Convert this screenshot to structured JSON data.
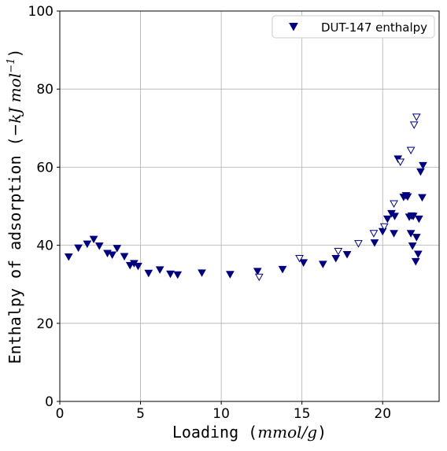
{
  "chart_data": {
    "type": "scatter",
    "xlabel": {
      "pre": "Loading (",
      "unit": "mmol/g",
      "post": ")"
    },
    "ylabel": {
      "pre": "Enthalpy of adsorption (",
      "unit": "−kJ mol",
      "sup": "−1",
      "post": ")"
    },
    "xlim": [
      0,
      23.5
    ],
    "ylim": [
      0,
      100
    ],
    "xticks": [
      0,
      5,
      10,
      15,
      20
    ],
    "yticks": [
      0,
      20,
      40,
      60,
      80,
      100
    ],
    "grid": true,
    "legend_position": "top-right",
    "marker_color": "#00007f",
    "series": [
      {
        "name": "DUT-147 enthalpy",
        "points_filled": [
          [
            0.55,
            37.0
          ],
          [
            1.15,
            39.3
          ],
          [
            1.7,
            40.3
          ],
          [
            2.1,
            41.5
          ],
          [
            2.45,
            39.8
          ],
          [
            2.95,
            37.9
          ],
          [
            3.25,
            37.5
          ],
          [
            3.55,
            39.2
          ],
          [
            4.0,
            37.1
          ],
          [
            4.35,
            34.8
          ],
          [
            4.6,
            35.3
          ],
          [
            4.85,
            34.6
          ],
          [
            5.5,
            32.8
          ],
          [
            6.2,
            33.7
          ],
          [
            6.85,
            32.6
          ],
          [
            7.3,
            32.4
          ],
          [
            8.8,
            32.9
          ],
          [
            10.55,
            32.5
          ],
          [
            12.25,
            33.3
          ],
          [
            13.8,
            33.8
          ],
          [
            15.1,
            35.5
          ],
          [
            16.3,
            35.1
          ],
          [
            17.1,
            36.6
          ],
          [
            17.8,
            37.6
          ],
          [
            19.5,
            40.6
          ],
          [
            20.0,
            43.5
          ],
          [
            20.3,
            46.7
          ],
          [
            20.55,
            48.1
          ],
          [
            20.7,
            43.0
          ],
          [
            20.75,
            47.4
          ],
          [
            20.95,
            62.1
          ],
          [
            21.3,
            52.3
          ],
          [
            21.45,
            52.7
          ],
          [
            21.55,
            52.4
          ],
          [
            21.65,
            47.2
          ],
          [
            21.75,
            43.0
          ],
          [
            21.8,
            47.5
          ],
          [
            21.85,
            39.8
          ],
          [
            21.9,
            47.4
          ],
          [
            22.05,
            35.8
          ],
          [
            22.1,
            42.0
          ],
          [
            22.2,
            37.7
          ],
          [
            22.25,
            46.7
          ],
          [
            22.35,
            58.8
          ],
          [
            22.45,
            52.2
          ],
          [
            22.5,
            60.4
          ]
        ],
        "points_hollow": [
          [
            12.35,
            31.8
          ],
          [
            14.85,
            36.6
          ],
          [
            17.25,
            38.4
          ],
          [
            18.5,
            40.4
          ],
          [
            19.45,
            43.0
          ],
          [
            20.1,
            44.7
          ],
          [
            20.7,
            50.6
          ],
          [
            21.1,
            61.3
          ],
          [
            21.75,
            64.3
          ],
          [
            21.95,
            70.8
          ],
          [
            22.1,
            72.8
          ]
        ]
      }
    ]
  }
}
